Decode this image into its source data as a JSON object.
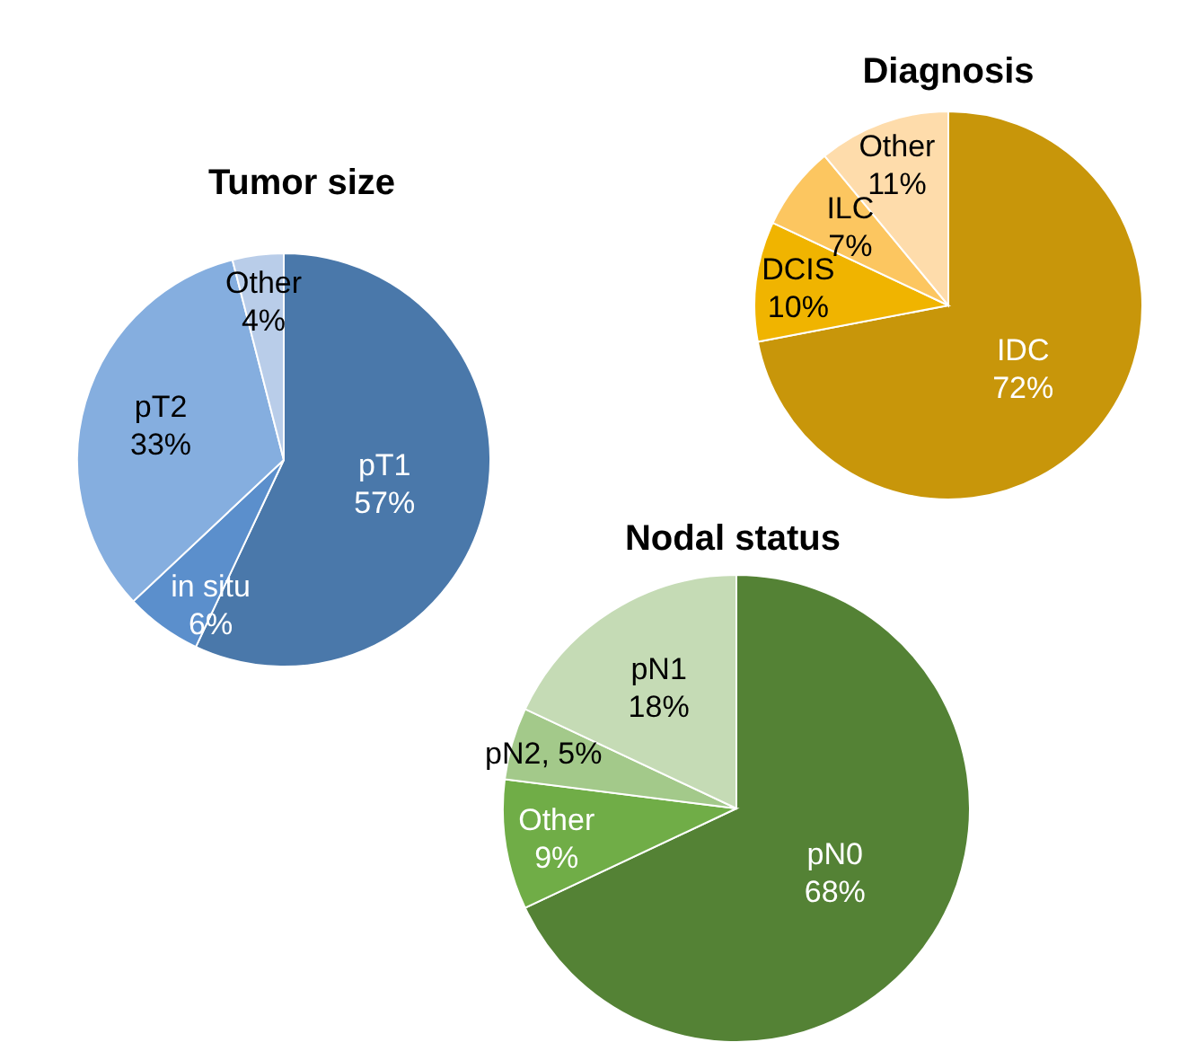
{
  "chart_data": [
    {
      "type": "pie",
      "title": "Tumor size",
      "categories": [
        "pT1",
        "in situ",
        "pT2",
        "Other"
      ],
      "values": [
        57,
        6,
        33,
        4
      ],
      "colors": [
        "#4a78aa",
        "#5b8fcc",
        "#85aedf",
        "#b9cde9"
      ],
      "value_labels": [
        "57%",
        "6%",
        "33%",
        "4%"
      ]
    },
    {
      "type": "pie",
      "title": "Diagnosis",
      "categories": [
        "IDC",
        "DCIS",
        "ILC",
        "Other"
      ],
      "values": [
        72,
        10,
        7,
        11
      ],
      "colors": [
        "#c8960a",
        "#f0b400",
        "#fcc660",
        "#fedcab"
      ],
      "value_labels": [
        "72%",
        "10%",
        "7%",
        "11%"
      ]
    },
    {
      "type": "pie",
      "title": "Nodal status",
      "categories": [
        "pN0",
        "Other",
        "pN2",
        "pN1"
      ],
      "values": [
        68,
        9,
        5,
        18
      ],
      "colors": [
        "#548235",
        "#70ad47",
        "#a3c98a",
        "#c5dbb5"
      ],
      "value_labels": [
        "68%",
        "9%",
        ", 5%",
        "18%"
      ]
    }
  ]
}
